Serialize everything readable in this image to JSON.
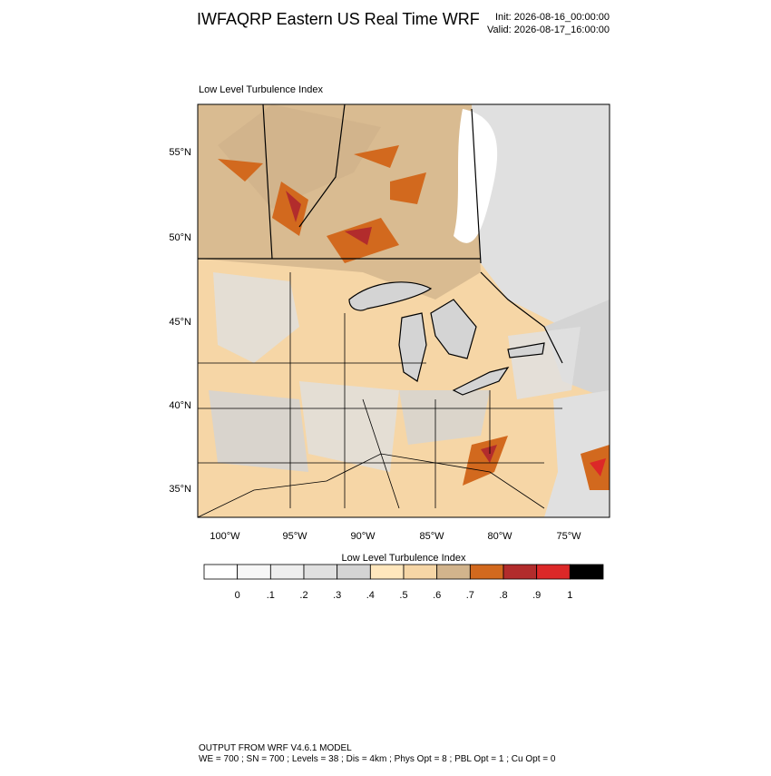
{
  "header": {
    "title": "IWFAQRP Eastern US Real Time WRF",
    "init": "Init: 2026-08-16_00:00:00",
    "valid": "Valid: 2026-08-17_16:00:00"
  },
  "map": {
    "subtitle": "Low Level Turbulence Index",
    "lat_labels": [
      "55°N",
      "50°N",
      "45°N",
      "40°N",
      "35°N"
    ],
    "lon_labels": [
      "100°W",
      "95°W",
      "90°W",
      "85°W",
      "80°W",
      "75°W"
    ]
  },
  "colorbar": {
    "title": "Low Level Turbulence Index",
    "colors": [
      "#ffffff",
      "#f7f7f7",
      "#eeeeee",
      "#e0e0e0",
      "#d4d4d4",
      "#ffe7bd",
      "#f6d6a6",
      "#d2b48c",
      "#d2691e",
      "#b22c2c",
      "#dc2828",
      "#000000"
    ],
    "labels": [
      "0",
      ".1",
      ".2",
      ".3",
      ".4",
      ".5",
      ".6",
      ".7",
      ".8",
      ".9",
      "1"
    ]
  },
  "footer": {
    "line1": "OUTPUT FROM WRF V4.6.1 MODEL",
    "line2": "WE = 700 ; SN = 700 ; Levels = 38 ; Dis = 4km ; Phys Opt = 8 ; PBL Opt = 1 ; Cu Opt = 0"
  }
}
